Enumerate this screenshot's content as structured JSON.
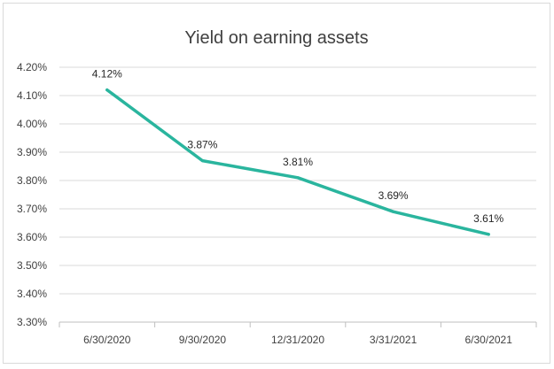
{
  "chart_data": {
    "type": "line",
    "title": "Yield on earning assets",
    "categories": [
      "6/30/2020",
      "9/30/2020",
      "12/31/2020",
      "3/31/2021",
      "6/30/2021"
    ],
    "series": [
      {
        "values": [
          4.12,
          3.87,
          3.81,
          3.69,
          3.61
        ],
        "color": "#2ab59e"
      }
    ],
    "data_labels": [
      "4.12%",
      "3.87%",
      "3.81%",
      "3.69%",
      "3.61%"
    ],
    "ylim": [
      3.3,
      4.2
    ],
    "yticks": [
      "3.30%",
      "3.40%",
      "3.50%",
      "3.60%",
      "3.70%",
      "3.80%",
      "3.90%",
      "4.00%",
      "4.10%",
      "4.20%"
    ],
    "grid": true,
    "legend": "none",
    "xlabel": "",
    "ylabel": ""
  }
}
